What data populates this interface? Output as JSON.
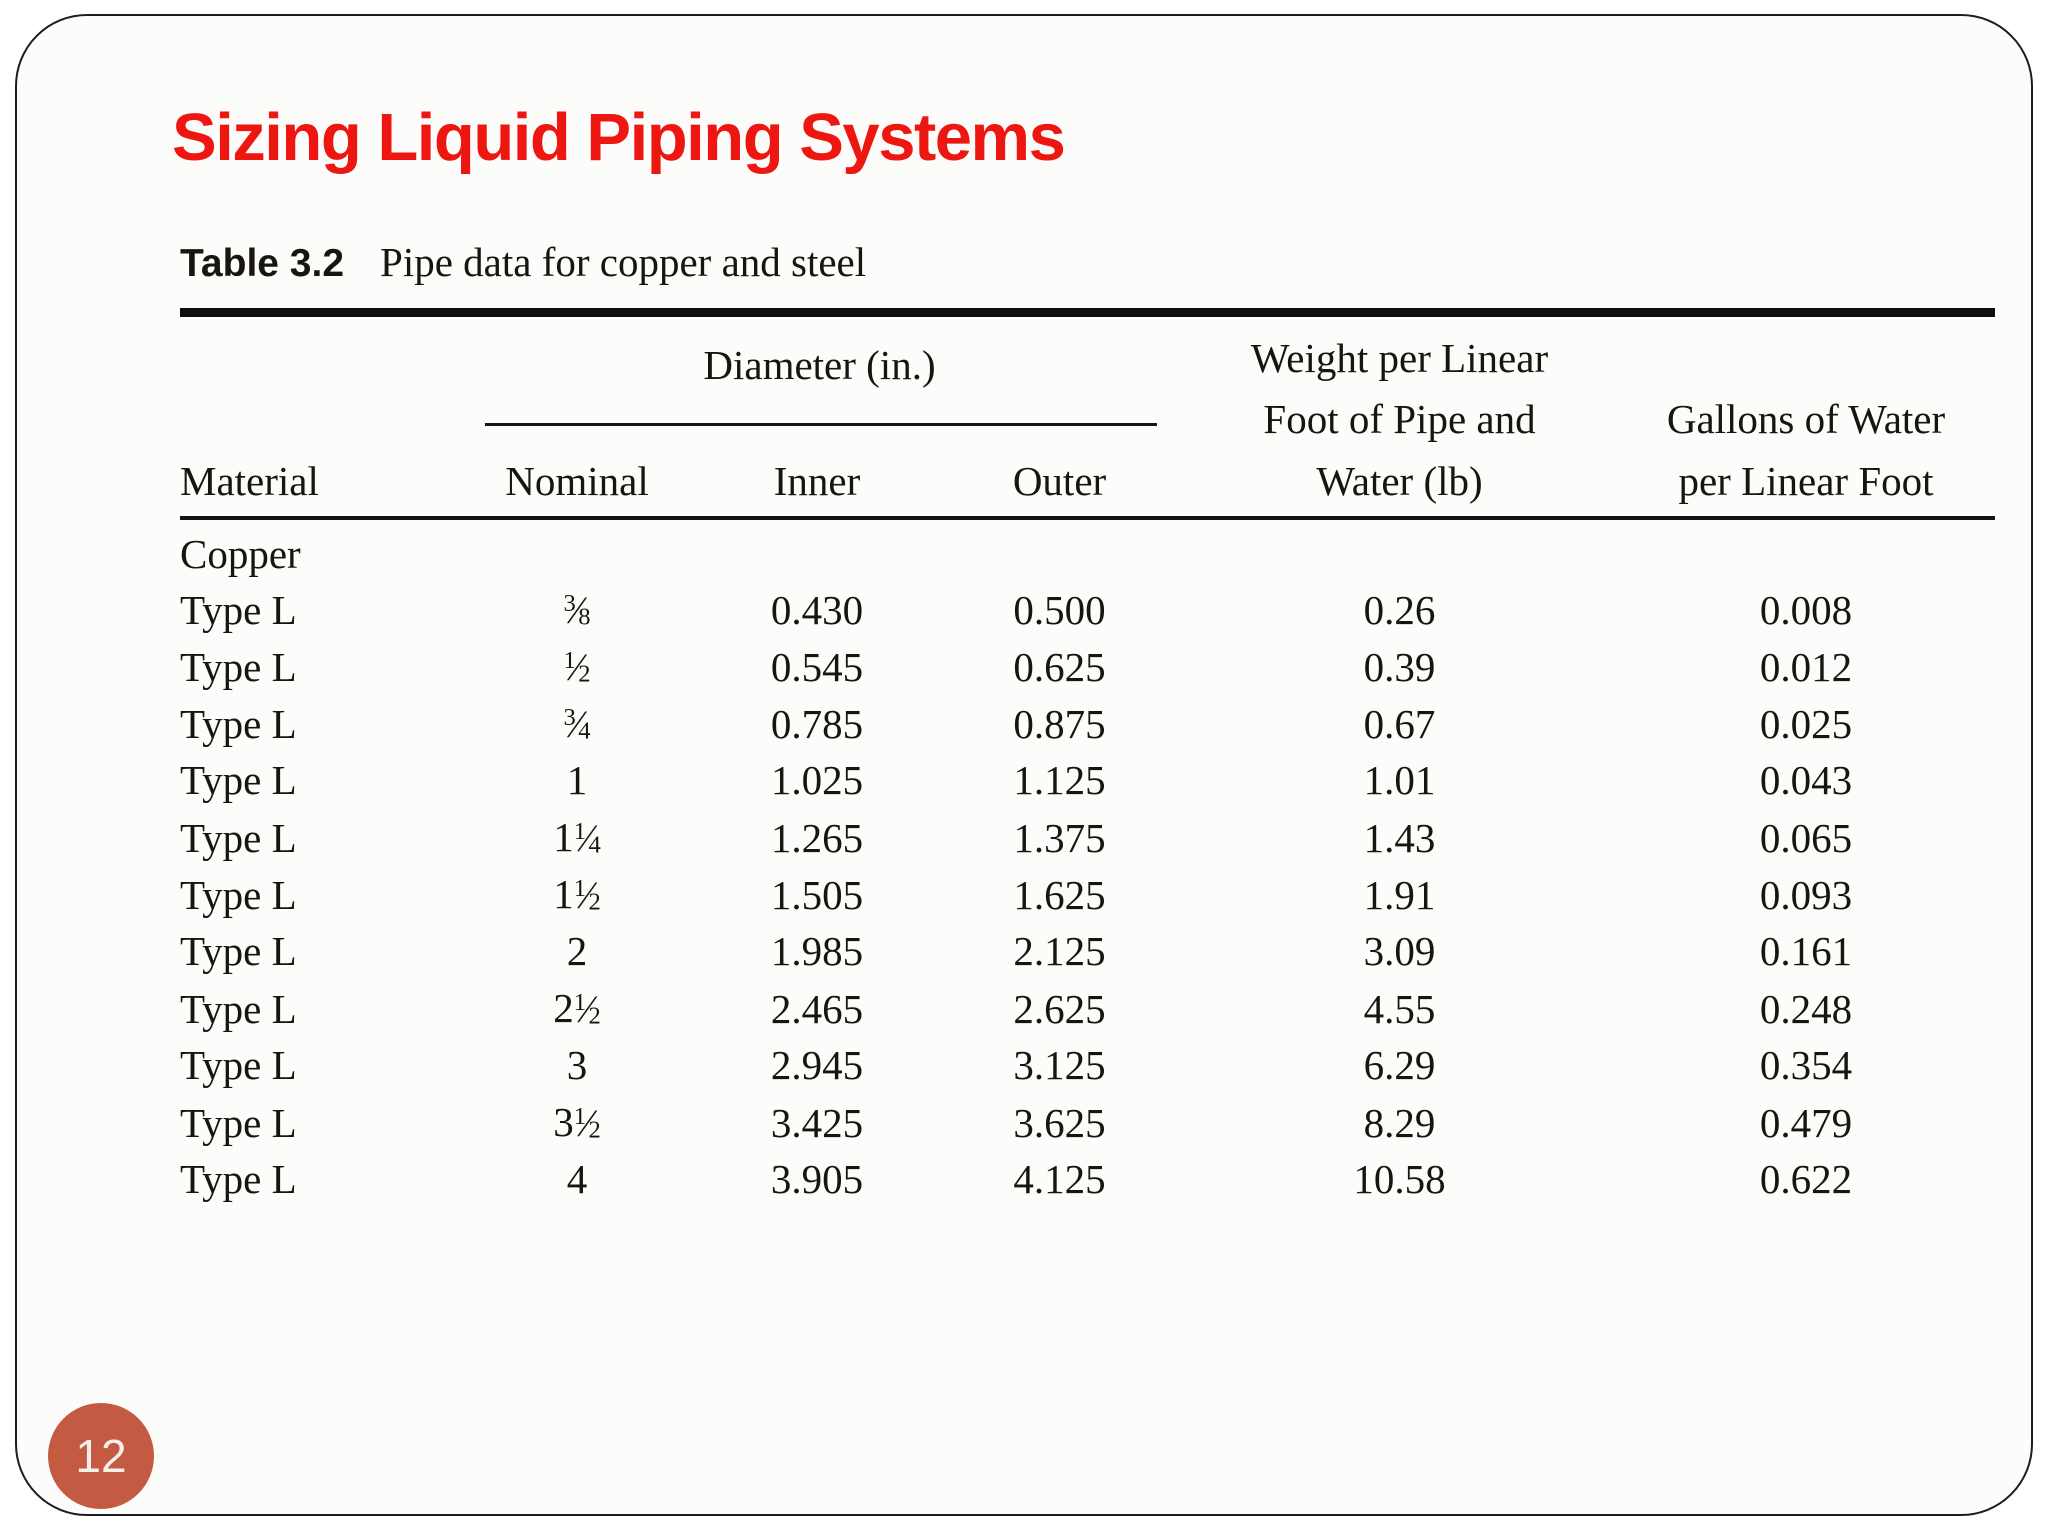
{
  "slide": {
    "title": "Sizing Liquid Piping Systems",
    "page_number": "12"
  },
  "table": {
    "caption_label": "Table 3.2",
    "caption_text": "Pipe data for copper and steel",
    "diameter_group_header": "Diameter (in.)",
    "headers": {
      "material": "Material",
      "nominal": "Nominal",
      "inner": "Inner",
      "outer": "Outer",
      "weight": [
        "Weight per Linear",
        "Foot of Pipe and",
        "Water (lb)"
      ],
      "gallons": [
        "Gallons of Water",
        "per Linear Foot"
      ]
    },
    "group_label": "Copper",
    "rows": [
      {
        "material": "Type L",
        "nominal": "3/8",
        "inner": "0.430",
        "outer": "0.500",
        "weight": "0.26",
        "gallons": "0.008"
      },
      {
        "material": "Type L",
        "nominal": "1/2",
        "inner": "0.545",
        "outer": "0.625",
        "weight": "0.39",
        "gallons": "0.012"
      },
      {
        "material": "Type L",
        "nominal": "3/4",
        "inner": "0.785",
        "outer": "0.875",
        "weight": "0.67",
        "gallons": "0.025"
      },
      {
        "material": "Type L",
        "nominal": "1",
        "inner": "1.025",
        "outer": "1.125",
        "weight": "1.01",
        "gallons": "0.043"
      },
      {
        "material": "Type L",
        "nominal": "1 1/4",
        "inner": "1.265",
        "outer": "1.375",
        "weight": "1.43",
        "gallons": "0.065"
      },
      {
        "material": "Type L",
        "nominal": "1 1/2",
        "inner": "1.505",
        "outer": "1.625",
        "weight": "1.91",
        "gallons": "0.093"
      },
      {
        "material": "Type L",
        "nominal": "2",
        "inner": "1.985",
        "outer": "2.125",
        "weight": "3.09",
        "gallons": "0.161"
      },
      {
        "material": "Type L",
        "nominal": "2 1/2",
        "inner": "2.465",
        "outer": "2.625",
        "weight": "4.55",
        "gallons": "0.248"
      },
      {
        "material": "Type L",
        "nominal": "3",
        "inner": "2.945",
        "outer": "3.125",
        "weight": "6.29",
        "gallons": "0.354"
      },
      {
        "material": "Type L",
        "nominal": "3 1/2",
        "inner": "3.425",
        "outer": "3.625",
        "weight": "8.29",
        "gallons": "0.479"
      },
      {
        "material": "Type L",
        "nominal": "4",
        "inner": "3.905",
        "outer": "4.125",
        "weight": "10.58",
        "gallons": "0.622"
      }
    ]
  },
  "colors": {
    "title_red": "#ee1610",
    "badge_terracotta": "#c45a41",
    "text": "#181410"
  }
}
